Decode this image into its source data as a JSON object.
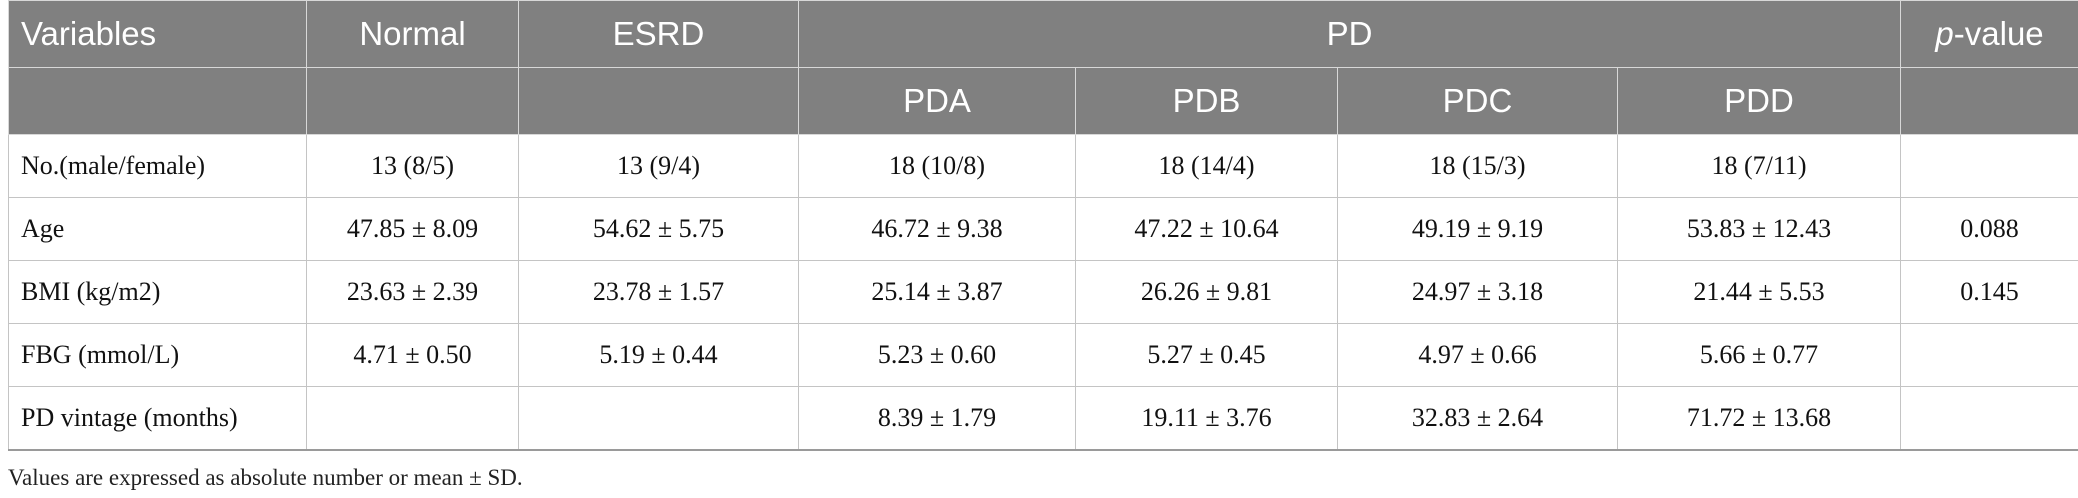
{
  "table": {
    "header1": {
      "variables": "Variables",
      "normal": "Normal",
      "esrd": "ESRD",
      "pd": "PD",
      "p_italic": "p",
      "p_rest": "-value"
    },
    "header2": [
      "PDA",
      "PDB",
      "PDC",
      "PDD"
    ],
    "rows": [
      {
        "label": "No.(male/female)",
        "cells": [
          "13 (8/5)",
          "13 (9/4)",
          "18 (10/8)",
          "18 (14/4)",
          "18 (15/3)",
          "18 (7/11)",
          ""
        ]
      },
      {
        "label": "Age",
        "cells": [
          "47.85 ± 8.09",
          "54.62 ± 5.75",
          "46.72 ± 9.38",
          "47.22 ± 10.64",
          "49.19 ± 9.19",
          "53.83 ± 12.43",
          "0.088"
        ]
      },
      {
        "label": "BMI (kg/m2)",
        "cells": [
          "23.63 ± 2.39",
          "23.78 ± 1.57",
          "25.14 ± 3.87",
          "26.26 ± 9.81",
          "24.97 ± 3.18",
          "21.44 ± 5.53",
          "0.145"
        ]
      },
      {
        "label": "FBG (mmol/L)",
        "cells": [
          "4.71 ± 0.50",
          "5.19 ± 0.44",
          "5.23 ± 0.60",
          "5.27 ± 0.45",
          "4.97 ± 0.66",
          "5.66 ± 0.77",
          ""
        ]
      },
      {
        "label": "PD vintage (months)",
        "cells": [
          "",
          "",
          "8.39 ± 1.79",
          "19.11 ± 3.76",
          "32.83 ± 2.64",
          "71.72 ± 13.68",
          ""
        ]
      }
    ]
  },
  "footnote": "Values are expressed as absolute number or mean ± SD."
}
